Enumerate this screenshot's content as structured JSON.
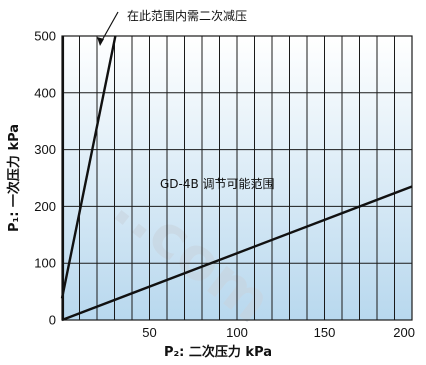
{
  "chart_data": {
    "type": "line",
    "title": "",
    "xlabel": "P₂: 二次压力 kPa",
    "ylabel": "P₁: 一次压力 kPa",
    "xlim": [
      0,
      200
    ],
    "ylim": [
      0,
      500
    ],
    "xticks": [
      50,
      100,
      150,
      200
    ],
    "yticks": [
      0,
      100,
      200,
      300,
      400,
      500
    ],
    "xtick_labels": [
      "50",
      "100",
      "150",
      "200"
    ],
    "ytick_labels": [
      "0",
      "100",
      "200",
      "300",
      "400",
      "500"
    ],
    "grid": true,
    "series": [
      {
        "x": [
          0.5,
          0.5
        ],
        "y": [
          0,
          500
        ]
      },
      {
        "x": [
          0,
          30.5
        ],
        "y": [
          38,
          500
        ]
      },
      {
        "x": [
          0,
          200
        ],
        "y": [
          0,
          235
        ]
      }
    ],
    "annotations": {
      "top": "在此范围内需二次减压",
      "region": "GD-4B 调节可能范围"
    }
  },
  "colors": {
    "line": "#111111",
    "grid": "#1a1a1a",
    "fill_top": "#ffffff",
    "fill_bottom": "#b8d8ee",
    "watermark": "#c8d3dd"
  },
  "watermark_text": "..com"
}
